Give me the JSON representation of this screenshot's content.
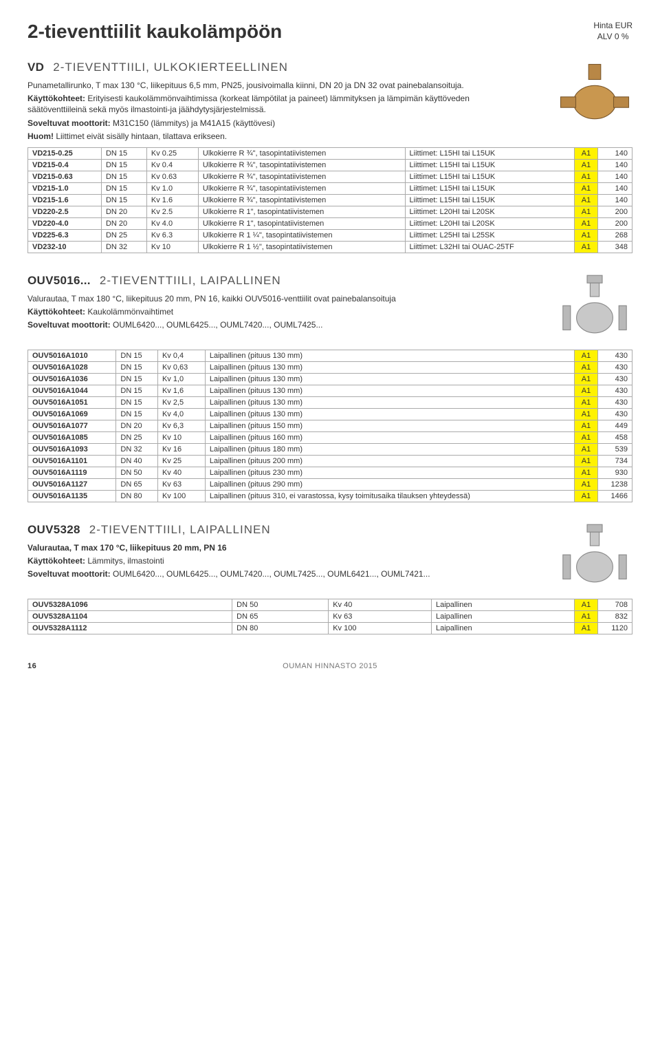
{
  "page_title": "2-tieventtiilit kaukolämpöön",
  "hinta_line1": "Hinta EUR",
  "hinta_line2": "ALV 0 %",
  "vd_section": {
    "code": "VD",
    "title": "2-TIEVENTTIILI, ULKOKIERTEELLINEN",
    "para1": "Punametallirunko, T max 130 °C, liikepituus 6,5 mm, PN25, jousivoimalla kiinni, DN 20 ja DN 32 ovat painebalansoituja.",
    "para2_label": "Käyttökohteet:",
    "para2": " Erityisesti kaukolämmönvaihtimissa (korkeat lämpötilat ja paineet) lämmityksen ja lämpimän käyttöveden säätöventtiileinä sekä myös ilmastointi-ja jäähdytysjärjestelmissä.",
    "para3_label": "Soveltuvat moottorit:",
    "para3": " M31C150 (lämmitys) ja M41A15 (käyttövesi)",
    "para4_label": "Huom!",
    "para4": " Liittimet eivät sisälly hintaan, tilattava erikseen.",
    "rows": [
      {
        "code": "VD215-0.25",
        "dn": "DN 15",
        "kv": "Kv 0.25",
        "desc": "Ulkokierre R ¾\", tasopintatiivistemen",
        "liit": "Liittimet: L15HI tai L15UK",
        "a": "A1",
        "price": "140"
      },
      {
        "code": "VD215-0.4",
        "dn": "DN 15",
        "kv": "Kv 0.4",
        "desc": "Ulkokierre R ¾\", tasopintatiivistemen",
        "liit": "Liittimet: L15HI tai L15UK",
        "a": "A1",
        "price": "140"
      },
      {
        "code": "VD215-0.63",
        "dn": "DN 15",
        "kv": "Kv 0.63",
        "desc": "Ulkokierre R ¾\", tasopintatiivistemen",
        "liit": "Liittimet: L15HI tai L15UK",
        "a": "A1",
        "price": "140"
      },
      {
        "code": "VD215-1.0",
        "dn": "DN 15",
        "kv": "Kv 1.0",
        "desc": "Ulkokierre R ¾\", tasopintatiivistemen",
        "liit": "Liittimet: L15HI tai L15UK",
        "a": "A1",
        "price": "140"
      },
      {
        "code": "VD215-1.6",
        "dn": "DN 15",
        "kv": "Kv 1.6",
        "desc": "Ulkokierre R ¾\", tasopintatiivistemen",
        "liit": "Liittimet: L15HI tai L15UK",
        "a": "A1",
        "price": "140"
      },
      {
        "code": "VD220-2.5",
        "dn": "DN 20",
        "kv": "Kv 2.5",
        "desc": "Ulkokierre R 1\", tasopintatiivistemen",
        "liit": "Liittimet: L20HI tai L20SK",
        "a": "A1",
        "price": "200"
      },
      {
        "code": "VD220-4.0",
        "dn": "DN 20",
        "kv": "Kv 4.0",
        "desc": "Ulkokierre R 1\", tasopintatiivistemen",
        "liit": "Liittimet: L20HI tai L20SK",
        "a": "A1",
        "price": "200"
      },
      {
        "code": "VD225-6.3",
        "dn": "DN 25",
        "kv": "Kv 6.3",
        "desc": "Ulkokierre R 1 ¼\", tasopintatiivistemen",
        "liit": "Liittimet: L25HI tai L25SK",
        "a": "A1",
        "price": "268"
      },
      {
        "code": "VD232-10",
        "dn": "DN 32",
        "kv": "Kv 10",
        "desc": "Ulkokierre R 1 ½\", tasopintatiivistemen",
        "liit": "Liittimet: L32HI tai OUAC-25TF",
        "a": "A1",
        "price": "348"
      }
    ]
  },
  "ouv5016_section": {
    "code": "OUV5016...",
    "title": "2-TIEVENTTIILI, LAIPALLINEN",
    "para1": "Valurautaa, T max 180 °C, liikepituus 20 mm, PN 16, kaikki OUV5016-venttiilit ovat painebalansoituja",
    "para2_label": "Käyttökohteet:",
    "para2": " Kaukolämmönvaihtimet",
    "para3_label": "Soveltuvat moottorit:",
    "para3": " OUML6420..., OUML6425..., OUML7420..., OUML7425...",
    "rows": [
      {
        "code": "OUV5016A1010",
        "dn": "DN 15",
        "kv": "Kv 0,4",
        "desc": "Laipallinen (pituus 130 mm)",
        "a": "A1",
        "price": "430"
      },
      {
        "code": "OUV5016A1028",
        "dn": "DN 15",
        "kv": "Kv 0,63",
        "desc": "Laipallinen (pituus 130 mm)",
        "a": "A1",
        "price": "430"
      },
      {
        "code": "OUV5016A1036",
        "dn": "DN 15",
        "kv": "Kv 1,0",
        "desc": "Laipallinen (pituus 130 mm)",
        "a": "A1",
        "price": "430"
      },
      {
        "code": "OUV5016A1044",
        "dn": "DN 15",
        "kv": "Kv 1,6",
        "desc": "Laipallinen (pituus 130 mm)",
        "a": "A1",
        "price": "430"
      },
      {
        "code": "OUV5016A1051",
        "dn": "DN 15",
        "kv": "Kv 2,5",
        "desc": "Laipallinen (pituus 130 mm)",
        "a": "A1",
        "price": "430"
      },
      {
        "code": "OUV5016A1069",
        "dn": "DN 15",
        "kv": "Kv 4,0",
        "desc": "Laipallinen (pituus 130 mm)",
        "a": "A1",
        "price": "430"
      },
      {
        "code": "OUV5016A1077",
        "dn": "DN 20",
        "kv": "Kv 6,3",
        "desc": "Laipallinen (pituus 150 mm)",
        "a": "A1",
        "price": "449"
      },
      {
        "code": "OUV5016A1085",
        "dn": "DN 25",
        "kv": "Kv 10",
        "desc": "Laipallinen (pituus 160 mm)",
        "a": "A1",
        "price": "458"
      },
      {
        "code": "OUV5016A1093",
        "dn": "DN 32",
        "kv": "Kv 16",
        "desc": "Laipallinen (pituus 180 mm)",
        "a": "A1",
        "price": "539"
      },
      {
        "code": "OUV5016A1101",
        "dn": "DN 40",
        "kv": "Kv 25",
        "desc": "Laipallinen (pituus 200 mm)",
        "a": "A1",
        "price": "734"
      },
      {
        "code": "OUV5016A1119",
        "dn": "DN 50",
        "kv": "Kv 40",
        "desc": "Laipallinen (pituus 230 mm)",
        "a": "A1",
        "price": "930"
      },
      {
        "code": "OUV5016A1127",
        "dn": "DN 65",
        "kv": "Kv 63",
        "desc": "Laipallinen (pituus 290 mm)",
        "a": "A1",
        "price": "1238"
      },
      {
        "code": "OUV5016A1135",
        "dn": "DN 80",
        "kv": "Kv 100",
        "desc": "Laipallinen (pituus 310, ei varastossa, kysy toimitusaika tilauksen yhteydessä)",
        "a": "A1",
        "price": "1466"
      }
    ]
  },
  "ouv5328_section": {
    "code": "OUV5328",
    "title": "2-TIEVENTTIILI, LAIPALLINEN",
    "para1": "Valurautaa, T max 170 °C, liikepituus 20 mm, PN 16",
    "para2_label": "Käyttökohteet:",
    "para2": " Lämmitys, ilmastointi",
    "para3_label": "Soveltuvat moottorit:",
    "para3": " OUML6420..., OUML6425..., OUML7420..., OUML7425..., OUML6421..., OUML7421...",
    "rows": [
      {
        "code": "OUV5328A1096",
        "dn": "DN 50",
        "kv": "Kv 40",
        "desc": "Laipallinen",
        "a": "A1",
        "price": "708"
      },
      {
        "code": "OUV5328A1104",
        "dn": "DN 65",
        "kv": "Kv 63",
        "desc": "Laipallinen",
        "a": "A1",
        "price": "832"
      },
      {
        "code": "OUV5328A1112",
        "dn": "DN 80",
        "kv": "Kv 100",
        "desc": "Laipallinen",
        "a": "A1",
        "price": "1120"
      }
    ]
  },
  "footer_page": "16",
  "footer_text": "OUMAN HINNASTO 2015",
  "colors": {
    "highlight": "#fff200",
    "border": "#aaaaaa",
    "text": "#333333",
    "brass": "#b88746",
    "grey_valve": "#b9b9b9"
  }
}
